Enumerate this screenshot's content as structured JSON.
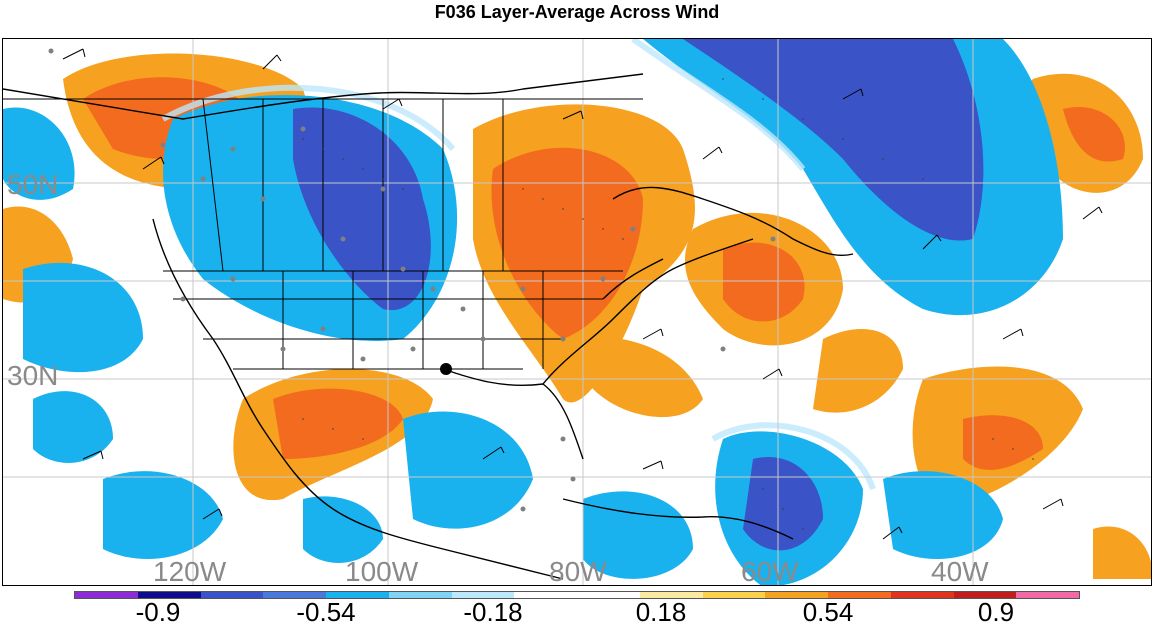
{
  "title": "F036 Layer-Average Across Wind",
  "latitude_labels": [
    "50N",
    "30N"
  ],
  "longitude_labels": [
    "120W",
    "100W",
    "80W",
    "60W",
    "40W"
  ],
  "colorbar": {
    "colors": [
      "#8f2ad8",
      "#0c0c8c",
      "#3a53c6",
      "#4a78dc",
      "#1ab2ee",
      "#7fd3f5",
      "#bde7fb",
      "#ffffff",
      "#ffffff",
      "#fbeaa0",
      "#fbd14b",
      "#f6a11f",
      "#f26b1e",
      "#e0321c",
      "#c21d1d",
      "#f06aa6"
    ],
    "tick_labels": [
      "-0.9",
      "-0.54",
      "-0.18",
      "0.18",
      "0.54",
      "0.9"
    ]
  },
  "icons": {
    "marker": "station-marker-icon"
  }
}
